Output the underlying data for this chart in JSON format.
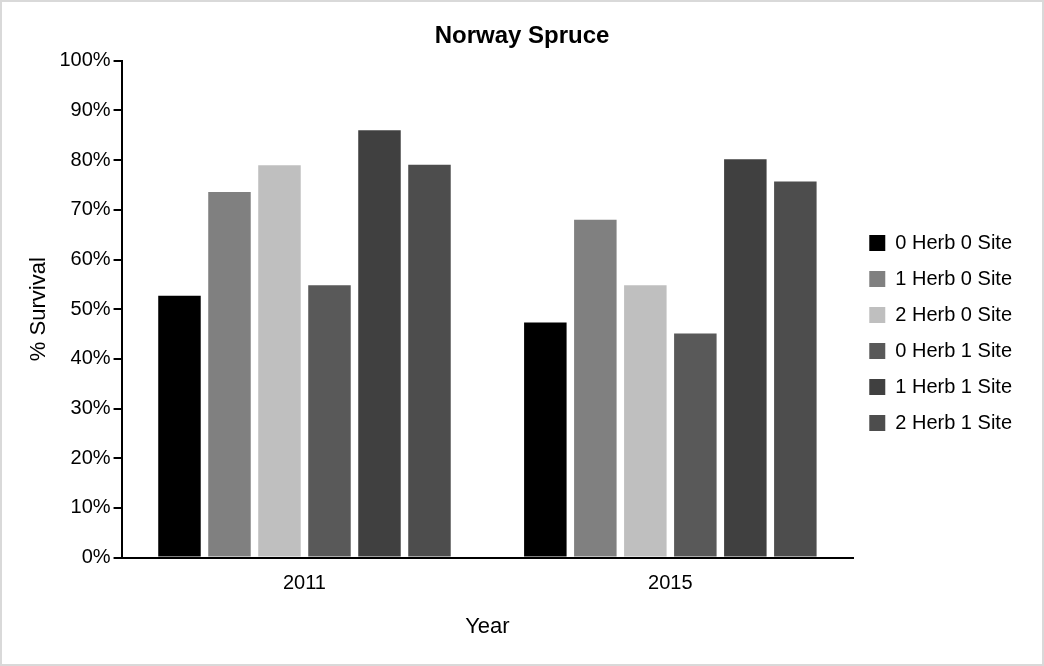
{
  "chart_data": {
    "type": "bar",
    "title": "Norway Spruce",
    "xlabel": "Year",
    "ylabel": "% Survival",
    "categories": [
      "2011",
      "2015"
    ],
    "series": [
      {
        "name": "0 Herb 0 Site",
        "color": "#000000",
        "values": [
          52.7,
          47.3
        ]
      },
      {
        "name": "1 Herb 0 Site",
        "color": "#808080",
        "values": [
          73.6,
          68
        ]
      },
      {
        "name": "2 Herb 0 Site",
        "color": "#bfbfbf",
        "values": [
          79,
          54.8
        ]
      },
      {
        "name": "0 Herb 1 Site",
        "color": "#595959",
        "values": [
          54.8,
          45.1
        ]
      },
      {
        "name": "1 Herb 1 Site",
        "color": "#404040",
        "values": [
          86,
          80.2
        ]
      },
      {
        "name": "2 Herb 1 Site",
        "color": "#4d4d4d",
        "values": [
          79.1,
          75.7
        ]
      }
    ],
    "ylim": [
      0,
      100
    ],
    "yticks": [
      {
        "value": 0,
        "label": "0%"
      },
      {
        "value": 10,
        "label": "10%"
      },
      {
        "value": 20,
        "label": "20%"
      },
      {
        "value": 30,
        "label": "30%"
      },
      {
        "value": 40,
        "label": "40%"
      },
      {
        "value": 50,
        "label": "50%"
      },
      {
        "value": 60,
        "label": "60%"
      },
      {
        "value": 70,
        "label": "70%"
      },
      {
        "value": 80,
        "label": "80%"
      },
      {
        "value": 90,
        "label": "90%"
      },
      {
        "value": 100,
        "label": "100%"
      }
    ],
    "grid": false,
    "legend": "right"
  }
}
